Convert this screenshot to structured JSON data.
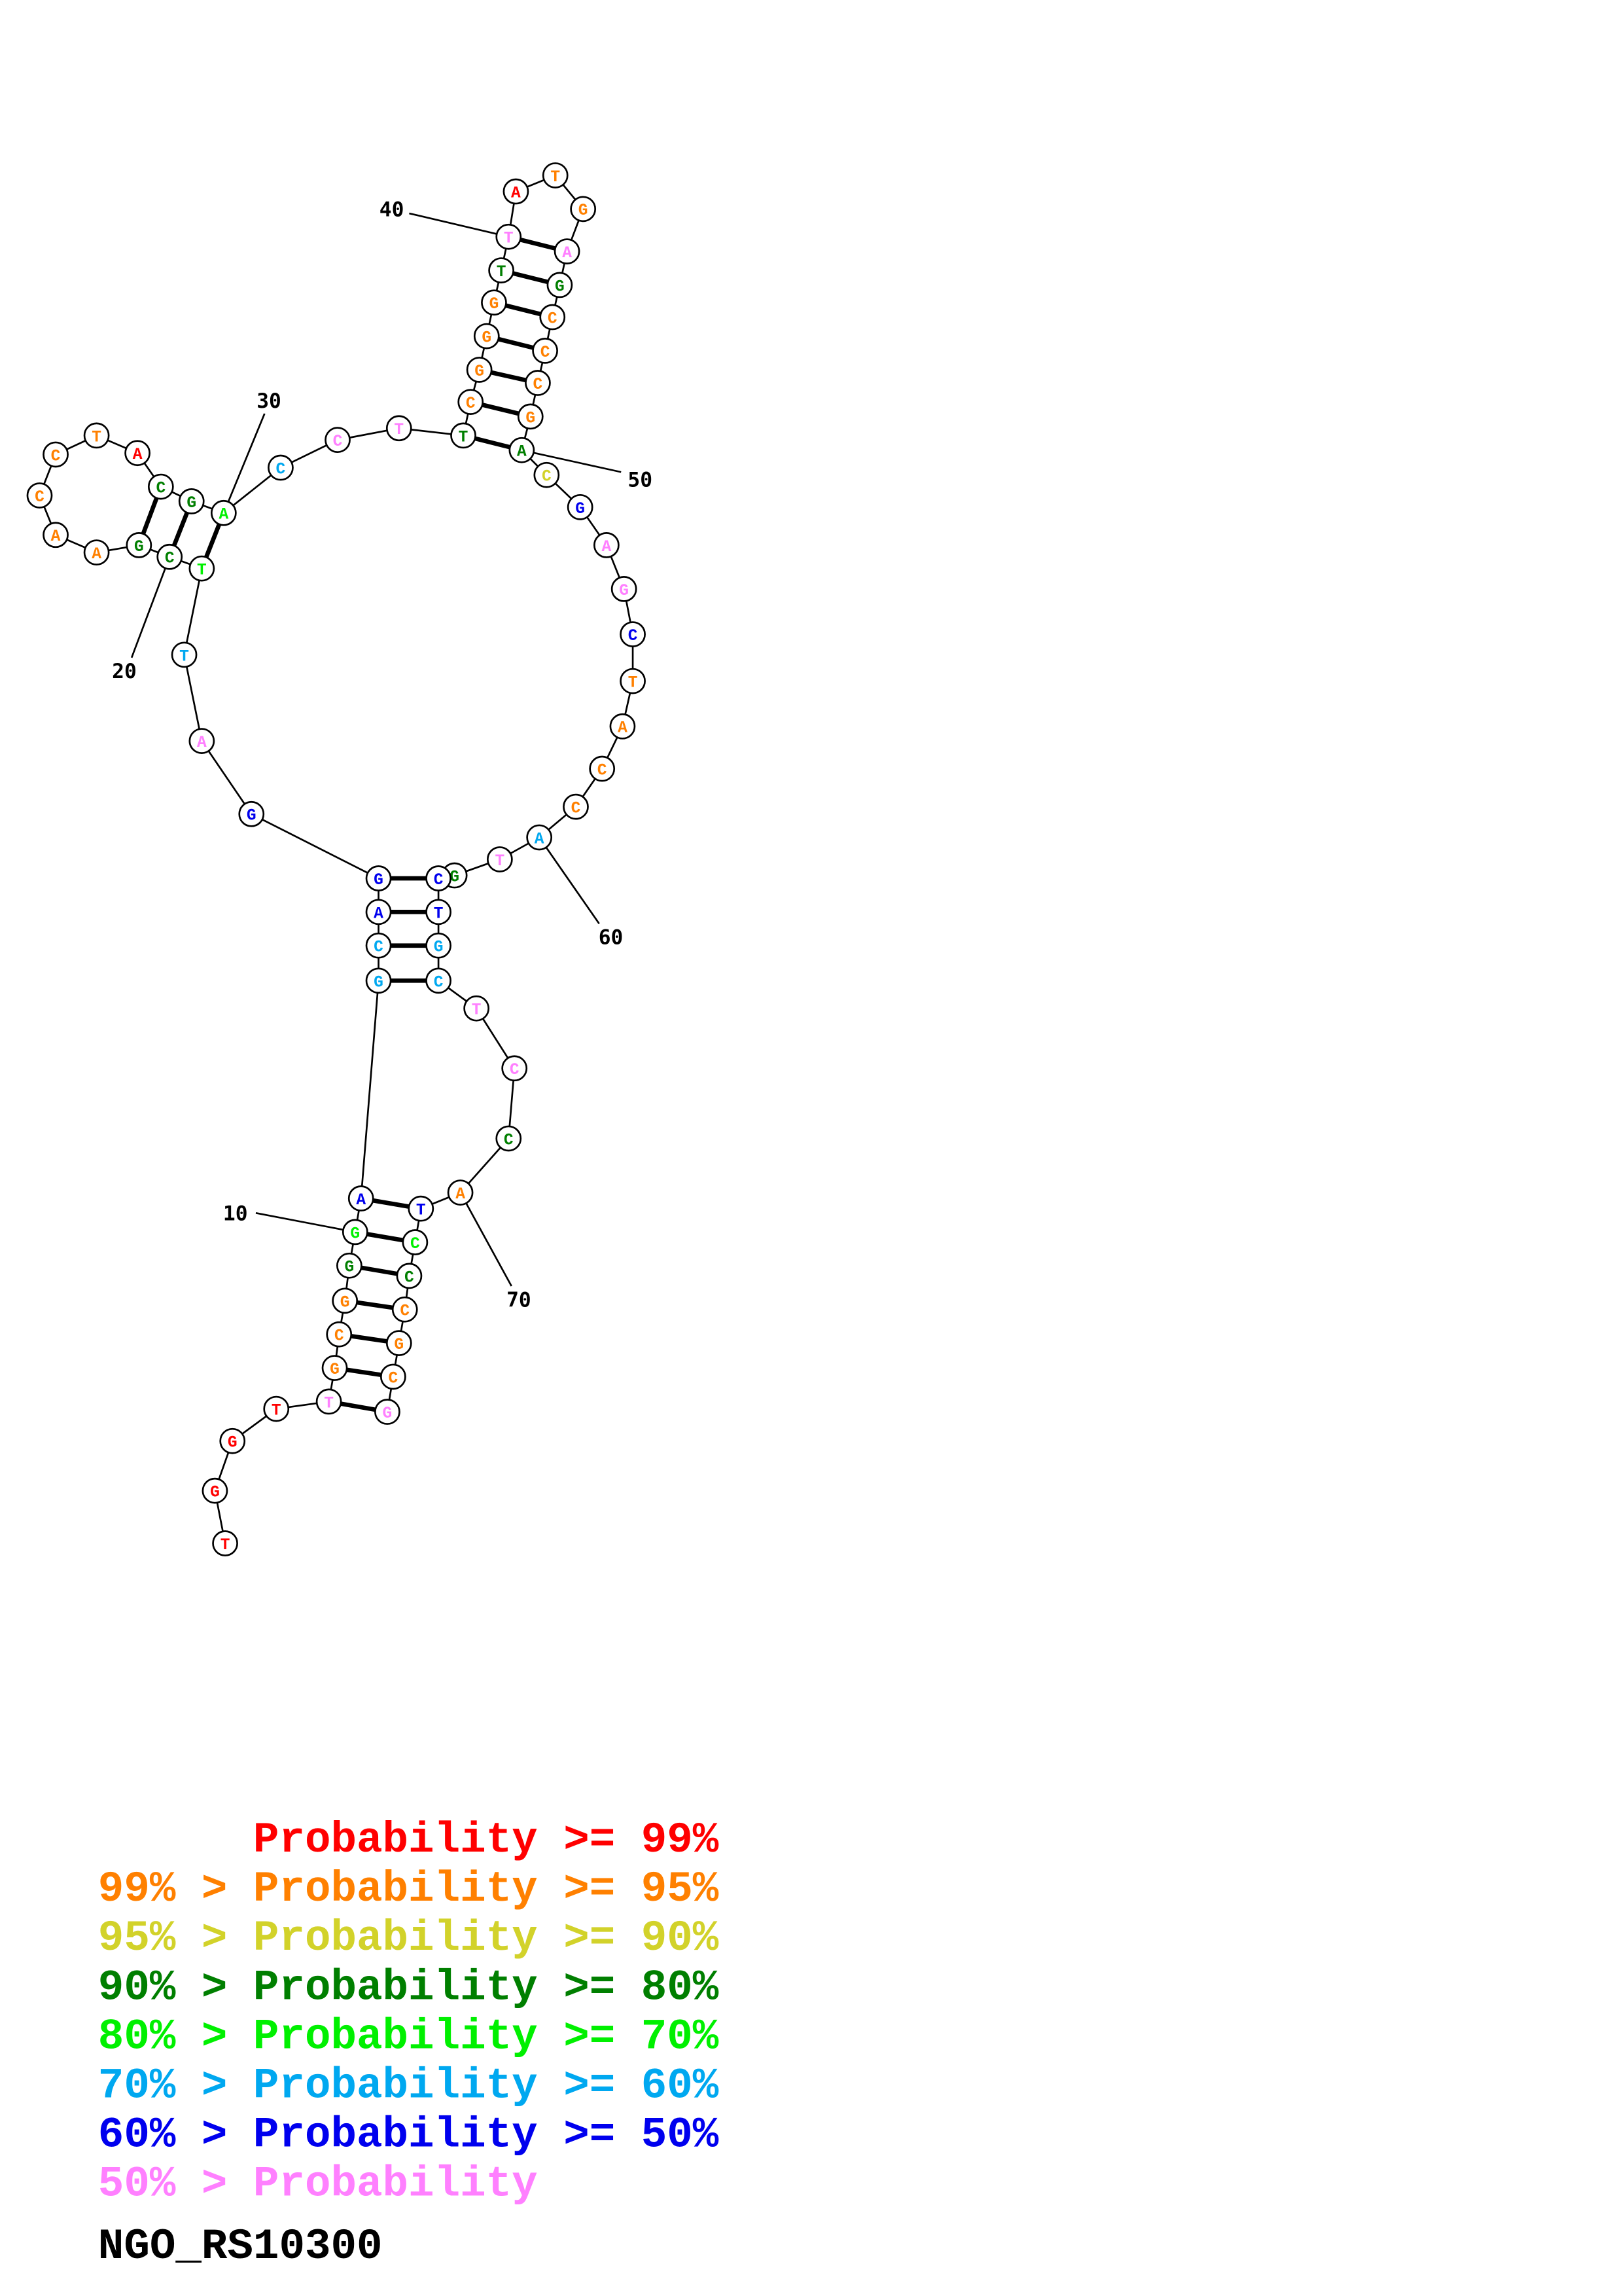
{
  "structure": {
    "sequence": "TGGTTGCGGGAGCAGGATTCGAACCTACGACCTTCGGGTTATGAGCCCGACGAGCTACCATGCTGCTCCATCCCGCG",
    "probability_bins": [
      "r",
      "r",
      "r",
      "r",
      "p",
      "o",
      "o",
      "o",
      "dg",
      "g",
      "b",
      "lb",
      "lb",
      "b",
      "b",
      "b",
      "p",
      "lb",
      "g",
      "dg",
      "dg",
      "o",
      "o",
      "o",
      "o",
      "o",
      "r",
      "dg",
      "dg",
      "g",
      "lb",
      "p",
      "p",
      "dg",
      "o",
      "o",
      "o",
      "o",
      "dg",
      "p",
      "r",
      "o",
      "o",
      "p",
      "dg",
      "o",
      "o",
      "o",
      "o",
      "dg",
      "y",
      "b",
      "p",
      "p",
      "b",
      "o",
      "o",
      "o",
      "o",
      "lb",
      "p",
      "dg",
      "b",
      "b",
      "lb",
      "lb",
      "p",
      "p",
      "dg",
      "o",
      "b",
      "g",
      "dg",
      "o",
      "o",
      "o",
      "p"
    ],
    "pairs": [
      [
        5,
        77
      ],
      [
        6,
        76
      ],
      [
        7,
        75
      ],
      [
        8,
        74
      ],
      [
        9,
        73
      ],
      [
        10,
        72
      ],
      [
        11,
        71
      ],
      [
        12,
        66
      ],
      [
        13,
        65
      ],
      [
        14,
        64
      ],
      [
        15,
        63
      ],
      [
        19,
        30
      ],
      [
        20,
        29
      ],
      [
        21,
        28
      ],
      [
        34,
        50
      ],
      [
        35,
        49
      ],
      [
        36,
        48
      ],
      [
        37,
        47
      ],
      [
        38,
        46
      ],
      [
        39,
        45
      ],
      [
        40,
        44
      ]
    ],
    "position_labels": [
      "10",
      "20",
      "30",
      "40",
      "50",
      "60",
      "70"
    ]
  },
  "bin_colors": {
    "r": "#ff0000",
    "o": "#ff8000",
    "y": "#d2d22a",
    "dg": "#007f00",
    "g": "#00f000",
    "lb": "#00a8f0",
    "b": "#0000ee",
    "p": "#ff80ff"
  },
  "legend": [
    {
      "text": "      Probability >= 99%",
      "bin": "r"
    },
    {
      "text": "99% > Probability >= 95%",
      "bin": "o"
    },
    {
      "text": "95% > Probability >= 90%",
      "bin": "y"
    },
    {
      "text": "90% > Probability >= 80%",
      "bin": "dg"
    },
    {
      "text": "80% > Probability >= 70%",
      "bin": "g"
    },
    {
      "text": "70% > Probability >= 60%",
      "bin": "lb"
    },
    {
      "text": "60% > Probability >= 50%",
      "bin": "b"
    },
    {
      "text": "50% > Probability",
      "bin": "p"
    }
  ],
  "gene_name": "NGO_RS10300"
}
